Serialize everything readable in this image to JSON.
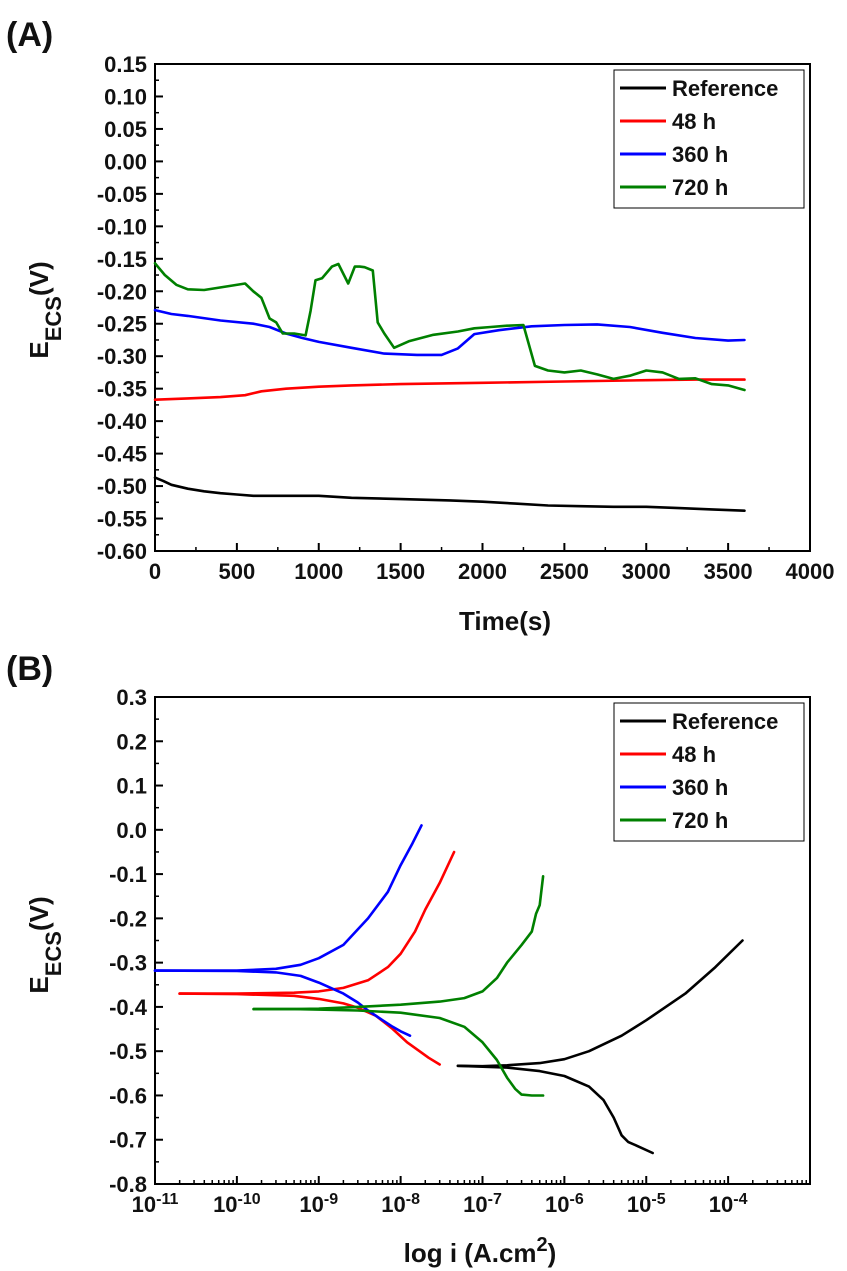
{
  "chart_data": [
    {
      "panel_label": "(A)",
      "type": "line",
      "xlabel": "Time(s)",
      "ylabel": "EECS(V)",
      "xlim": [
        0,
        4000
      ],
      "ylim": [
        -0.6,
        0.15
      ],
      "xticks": [
        0,
        500,
        1000,
        1500,
        2000,
        2500,
        3000,
        3500,
        4000
      ],
      "xtick_labels": [
        "0",
        "500",
        "1000",
        "1500",
        "2000",
        "2500",
        "3000",
        "3500",
        "4000"
      ],
      "yticks": [
        0.15,
        0.1,
        0.05,
        0.0,
        -0.05,
        -0.1,
        -0.15,
        -0.2,
        -0.25,
        -0.3,
        -0.35,
        -0.4,
        -0.45,
        -0.5,
        -0.55,
        -0.6
      ],
      "ytick_labels": [
        "0.15",
        "0.10",
        "0.05",
        "0.00",
        "-0.05",
        "-0.10",
        "-0.15",
        "-0.20",
        "-0.25",
        "-0.30",
        "-0.35",
        "-0.40",
        "-0.45",
        "-0.50",
        "-0.55",
        "-0.60"
      ],
      "grid": false,
      "legend_position": "top-right",
      "series": [
        {
          "name": "Reference",
          "color": "#000000",
          "x": [
            0,
            50,
            100,
            200,
            300,
            400,
            500,
            600,
            800,
            1000,
            1200,
            1500,
            1800,
            2000,
            2200,
            2400,
            2600,
            2800,
            3000,
            3200,
            3400,
            3600
          ],
          "y": [
            -0.487,
            -0.492,
            -0.498,
            -0.504,
            -0.508,
            -0.511,
            -0.513,
            -0.515,
            -0.515,
            -0.515,
            -0.518,
            -0.52,
            -0.522,
            -0.524,
            -0.527,
            -0.53,
            -0.531,
            -0.532,
            -0.532,
            -0.534,
            -0.536,
            -0.538
          ]
        },
        {
          "name": "48 h",
          "color": "#ff0000",
          "x": [
            0,
            200,
            400,
            550,
            650,
            800,
            1000,
            1200,
            1500,
            2000,
            2500,
            3000,
            3300,
            3600
          ],
          "y": [
            -0.367,
            -0.365,
            -0.363,
            -0.36,
            -0.354,
            -0.35,
            -0.347,
            -0.345,
            -0.343,
            -0.341,
            -0.339,
            -0.337,
            -0.336,
            -0.336
          ]
        },
        {
          "name": "360 h",
          "color": "#0000ff",
          "x": [
            0,
            100,
            200,
            400,
            600,
            700,
            800,
            900,
            1000,
            1200,
            1400,
            1600,
            1750,
            1850,
            1950,
            2100,
            2300,
            2500,
            2700,
            2900,
            3100,
            3300,
            3500,
            3600
          ],
          "y": [
            -0.229,
            -0.235,
            -0.238,
            -0.245,
            -0.25,
            -0.255,
            -0.265,
            -0.272,
            -0.278,
            -0.287,
            -0.296,
            -0.298,
            -0.298,
            -0.288,
            -0.266,
            -0.26,
            -0.254,
            -0.252,
            -0.251,
            -0.255,
            -0.264,
            -0.272,
            -0.276,
            -0.275
          ]
        },
        {
          "name": "720 h",
          "color": "#008000",
          "x": [
            0,
            60,
            130,
            200,
            300,
            450,
            550,
            600,
            650,
            700,
            740,
            780,
            850,
            920,
            950,
            980,
            1020,
            1080,
            1120,
            1180,
            1220,
            1250,
            1280,
            1330,
            1360,
            1400,
            1460,
            1550,
            1700,
            1850,
            1950,
            2050,
            2150,
            2250,
            2320,
            2400,
            2500,
            2600,
            2700,
            2800,
            2900,
            3000,
            3100,
            3200,
            3300,
            3400,
            3500,
            3600
          ],
          "y": [
            -0.157,
            -0.175,
            -0.19,
            -0.197,
            -0.198,
            -0.192,
            -0.188,
            -0.2,
            -0.21,
            -0.242,
            -0.248,
            -0.265,
            -0.265,
            -0.268,
            -0.23,
            -0.183,
            -0.18,
            -0.162,
            -0.158,
            -0.188,
            -0.162,
            -0.162,
            -0.163,
            -0.168,
            -0.248,
            -0.265,
            -0.287,
            -0.277,
            -0.267,
            -0.262,
            -0.257,
            -0.255,
            -0.253,
            -0.252,
            -0.315,
            -0.322,
            -0.325,
            -0.322,
            -0.328,
            -0.335,
            -0.33,
            -0.322,
            -0.325,
            -0.335,
            -0.334,
            -0.343,
            -0.345,
            -0.352
          ]
        }
      ]
    },
    {
      "panel_label": "(B)",
      "type": "line",
      "xlabel": "log i (A.cm2)",
      "ylabel": "EECS(V)",
      "xscale": "log",
      "xlim": [
        1e-11,
        0.001
      ],
      "ylim": [
        -0.8,
        0.3
      ],
      "xticks": [
        1e-11,
        1e-10,
        1e-09,
        1e-08,
        1e-07,
        1e-06,
        1e-05,
        0.0001
      ],
      "xtick_labels": [
        "10-11",
        "10-10",
        "10-9",
        "10-8",
        "10-7",
        "10-6",
        "10-5",
        "10-4"
      ],
      "yticks": [
        0.3,
        0.2,
        0.1,
        0.0,
        -0.1,
        -0.2,
        -0.3,
        -0.4,
        -0.5,
        -0.6,
        -0.7,
        -0.8
      ],
      "ytick_labels": [
        "0.3",
        "0.2",
        "0.1",
        "0.0",
        "-0.1",
        "-0.2",
        "-0.3",
        "-0.4",
        "-0.5",
        "-0.6",
        "-0.7",
        "-0.8"
      ],
      "grid": false,
      "legend_position": "top-right",
      "series": [
        {
          "name": "Reference",
          "color": "#000000",
          "branches": [
            {
              "x": [
                5e-08,
                1e-07,
                2e-07,
                5e-07,
                1e-06,
                2e-06,
                5e-06,
                1e-05,
                3e-05,
                7e-05,
                0.00015
              ],
              "y": [
                -0.533,
                -0.534,
                -0.532,
                -0.527,
                -0.518,
                -0.5,
                -0.465,
                -0.43,
                -0.37,
                -0.31,
                -0.25
              ]
            },
            {
              "x": [
                5e-08,
                1e-07,
                2e-07,
                5e-07,
                1e-06,
                2e-06,
                3e-06,
                4e-06,
                5e-06,
                6e-06,
                8e-06,
                1.2e-05
              ],
              "y": [
                -0.533,
                -0.535,
                -0.537,
                -0.545,
                -0.556,
                -0.58,
                -0.61,
                -0.65,
                -0.69,
                -0.705,
                -0.715,
                -0.73
              ]
            }
          ]
        },
        {
          "name": "48 h",
          "color": "#ff0000",
          "branches": [
            {
              "x": [
                2e-11,
                1e-10,
                5e-10,
                1e-09,
                2e-09,
                4e-09,
                7e-09,
                1e-08,
                1.5e-08,
                2e-08,
                3e-08,
                4.5e-08
              ],
              "y": [
                -0.37,
                -0.37,
                -0.368,
                -0.365,
                -0.357,
                -0.34,
                -0.31,
                -0.28,
                -0.23,
                -0.18,
                -0.12,
                -0.05
              ]
            },
            {
              "x": [
                2e-11,
                1e-10,
                5e-10,
                1e-09,
                2e-09,
                3e-09,
                5e-09,
                8e-09,
                1.2e-08,
                1.7e-08,
                2.2e-08,
                3e-08
              ],
              "y": [
                -0.37,
                -0.371,
                -0.375,
                -0.382,
                -0.392,
                -0.402,
                -0.42,
                -0.45,
                -0.48,
                -0.5,
                -0.515,
                -0.53
              ]
            }
          ]
        },
        {
          "name": "360 h",
          "color": "#0000ff",
          "branches": [
            {
              "x": [
                1e-11,
                1e-10,
                3e-10,
                6e-10,
                1e-09,
                2e-09,
                4e-09,
                7e-09,
                1e-08,
                1.4e-08,
                1.8e-08
              ],
              "y": [
                -0.318,
                -0.318,
                -0.314,
                -0.305,
                -0.29,
                -0.26,
                -0.2,
                -0.14,
                -0.08,
                -0.03,
                0.01
              ]
            },
            {
              "x": [
                1e-11,
                1e-10,
                3e-10,
                6e-10,
                1e-09,
                2e-09,
                3e-09,
                4e-09,
                6e-09,
                8e-09,
                1e-08,
                1.3e-08
              ],
              "y": [
                -0.318,
                -0.319,
                -0.322,
                -0.33,
                -0.345,
                -0.37,
                -0.39,
                -0.408,
                -0.43,
                -0.445,
                -0.455,
                -0.465
              ]
            }
          ]
        },
        {
          "name": "720 h",
          "color": "#008000",
          "branches": [
            {
              "x": [
                1.6e-10,
                5e-10,
                1e-09,
                3e-09,
                1e-08,
                3e-08,
                6e-08,
                1e-07,
                1.5e-07,
                2e-07,
                3e-07,
                4e-07,
                4.5e-07,
                5e-07,
                5.5e-07
              ],
              "y": [
                -0.405,
                -0.405,
                -0.404,
                -0.4,
                -0.395,
                -0.388,
                -0.38,
                -0.365,
                -0.335,
                -0.3,
                -0.26,
                -0.23,
                -0.19,
                -0.17,
                -0.105
              ]
            },
            {
              "x": [
                1.6e-10,
                5e-10,
                1e-09,
                3e-09,
                1e-08,
                3e-08,
                6e-08,
                1e-07,
                1.5e-07,
                2e-07,
                2.5e-07,
                3e-07,
                4e-07,
                5.5e-07
              ],
              "y": [
                -0.405,
                -0.405,
                -0.406,
                -0.408,
                -0.413,
                -0.425,
                -0.445,
                -0.48,
                -0.52,
                -0.56,
                -0.585,
                -0.598,
                -0.6,
                -0.6
              ]
            }
          ]
        }
      ]
    }
  ]
}
